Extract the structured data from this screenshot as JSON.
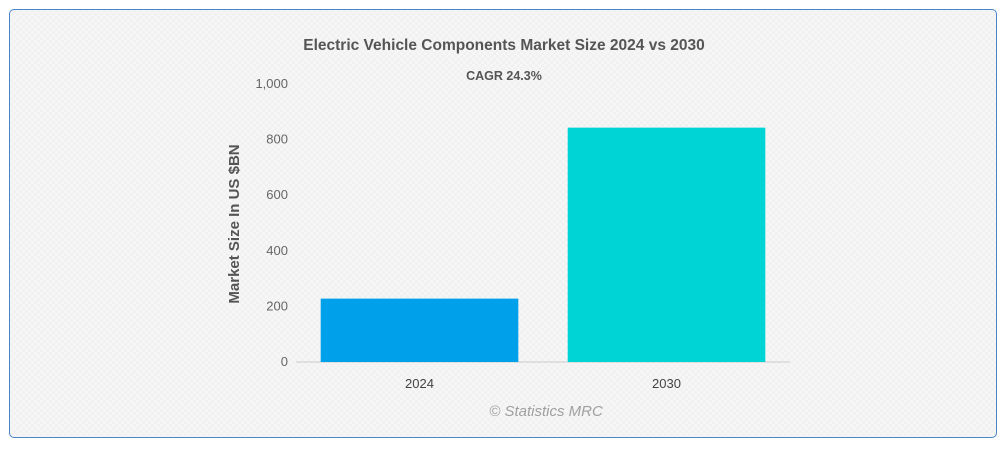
{
  "chart_data": {
    "type": "bar",
    "title": "Electric Vehicle Components Market Size 2024 vs 2030",
    "subtitle": "CAGR 24.3%",
    "xlabel": "",
    "ylabel": "Market Size In US $BN",
    "categories": [
      "2024",
      "2030"
    ],
    "values": [
      228,
      843
    ],
    "ylim": [
      0,
      1000
    ],
    "yticks": [
      0,
      200,
      400,
      600,
      800,
      1000
    ],
    "ytick_labels": [
      "0",
      "200",
      "400",
      "600",
      "800",
      "1,000"
    ],
    "bar_colors": [
      "#00a0ea",
      "#00d4d4"
    ],
    "grid": false,
    "legend": "none",
    "credit": "© Statistics MRC"
  }
}
